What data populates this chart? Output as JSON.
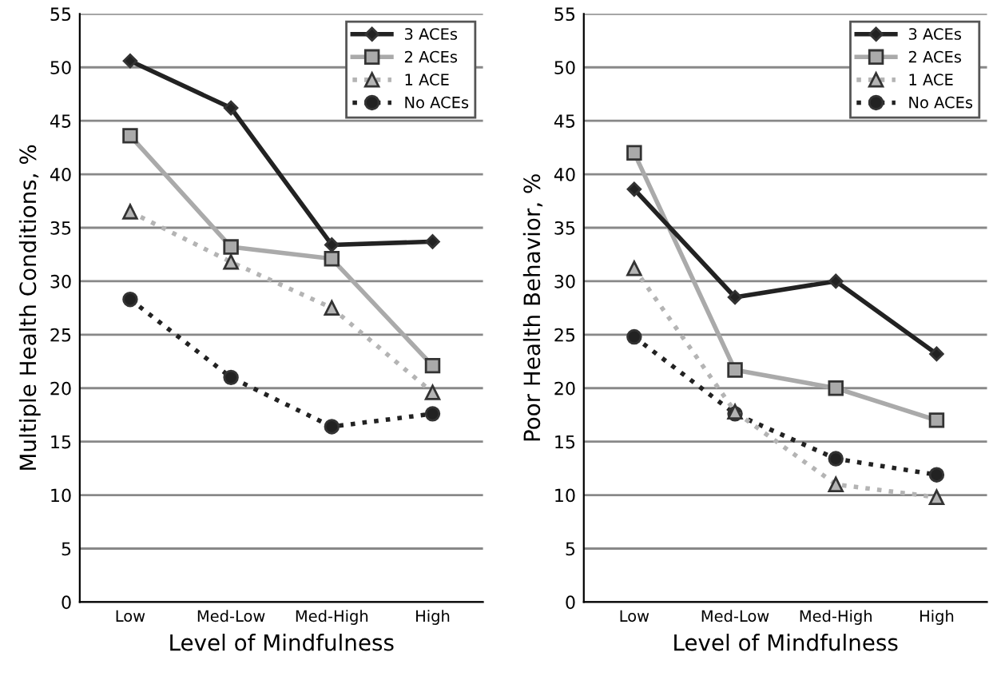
{
  "chart_data": [
    {
      "type": "line",
      "xlabel": "Level of Mindfulness",
      "ylabel": "Multiple Health Conditions, %",
      "categories": [
        "Low",
        "Med-Low",
        "Med-High",
        "High"
      ],
      "ylim": [
        0,
        55
      ],
      "yticks": [
        0,
        5,
        10,
        15,
        20,
        25,
        30,
        35,
        40,
        45,
        50,
        55
      ],
      "grid": "y",
      "legend": "top right",
      "series": [
        {
          "name": "3 ACEs",
          "color": "#222222",
          "marker": "diamond",
          "line_style": "solid",
          "values": [
            50.6,
            46.2,
            33.4,
            33.7
          ]
        },
        {
          "name": "2 ACEs",
          "color": "#aaaaaa",
          "marker": "square",
          "line_style": "solid",
          "values": [
            43.6,
            33.2,
            32.1,
            22.1
          ]
        },
        {
          "name": "1 ACE",
          "color": "#b4b4b4",
          "marker": "triangle",
          "line_style": "dotted",
          "values": [
            36.5,
            31.8,
            27.5,
            19.6
          ]
        },
        {
          "name": "No ACEs",
          "color": "#222222",
          "marker": "circle",
          "line_style": "dotted",
          "values": [
            28.3,
            21.0,
            16.4,
            17.6
          ]
        }
      ]
    },
    {
      "type": "line",
      "xlabel": "Level of Mindfulness",
      "ylabel": "Poor Health Behavior, %",
      "categories": [
        "Low",
        "Med-Low",
        "Med-High",
        "High"
      ],
      "ylim": [
        0,
        55
      ],
      "yticks": [
        0,
        5,
        10,
        15,
        20,
        25,
        30,
        35,
        40,
        45,
        50,
        55
      ],
      "grid": "y",
      "legend": "top right",
      "series": [
        {
          "name": "3 ACEs",
          "color": "#222222",
          "marker": "diamond",
          "line_style": "solid",
          "values": [
            38.6,
            28.5,
            30.0,
            23.2
          ]
        },
        {
          "name": "2 ACEs",
          "color": "#aaaaaa",
          "marker": "square",
          "line_style": "solid",
          "values": [
            42.0,
            21.7,
            20.0,
            17.0
          ]
        },
        {
          "name": "1 ACE",
          "color": "#b4b4b4",
          "marker": "triangle",
          "line_style": "dotted",
          "values": [
            31.2,
            17.8,
            11.0,
            9.8
          ]
        },
        {
          "name": "No ACEs",
          "color": "#222222",
          "marker": "circle",
          "line_style": "dotted",
          "values": [
            24.8,
            17.6,
            13.4,
            11.9
          ]
        }
      ]
    }
  ]
}
